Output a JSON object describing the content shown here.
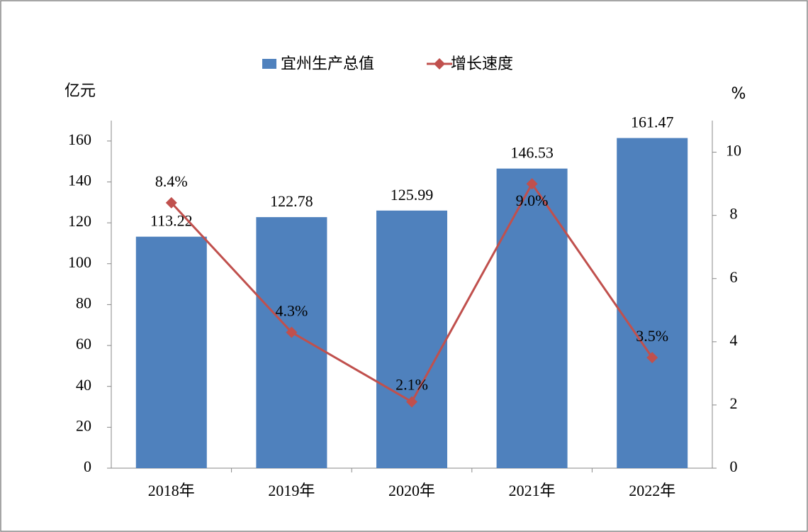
{
  "chart_data": {
    "type": "bar-line",
    "categories": [
      "2018年",
      "2019年",
      "2020年",
      "2021年",
      "2022年"
    ],
    "series": [
      {
        "name": "宜州生产总值",
        "type": "bar",
        "color": "#4f81bd",
        "values": [
          113.22,
          122.78,
          125.99,
          146.53,
          161.47
        ]
      },
      {
        "name": "增长速度",
        "type": "line",
        "axis": "y2",
        "color": "#c0504d",
        "values": [
          8.4,
          4.3,
          2.1,
          9.0,
          3.5
        ],
        "value_labels": [
          "8.4%",
          "4.3%",
          "2.1%",
          "9.0%",
          "3.5%"
        ]
      }
    ],
    "y_label": "亿元",
    "y2_label": "%",
    "ylim": [
      0,
      170
    ],
    "yticks": [
      0,
      20,
      40,
      60,
      80,
      100,
      120,
      140,
      160
    ],
    "y2lim": [
      0,
      11
    ],
    "y2ticks": [
      0,
      2,
      4,
      6,
      8,
      10
    ],
    "legend": "top"
  }
}
